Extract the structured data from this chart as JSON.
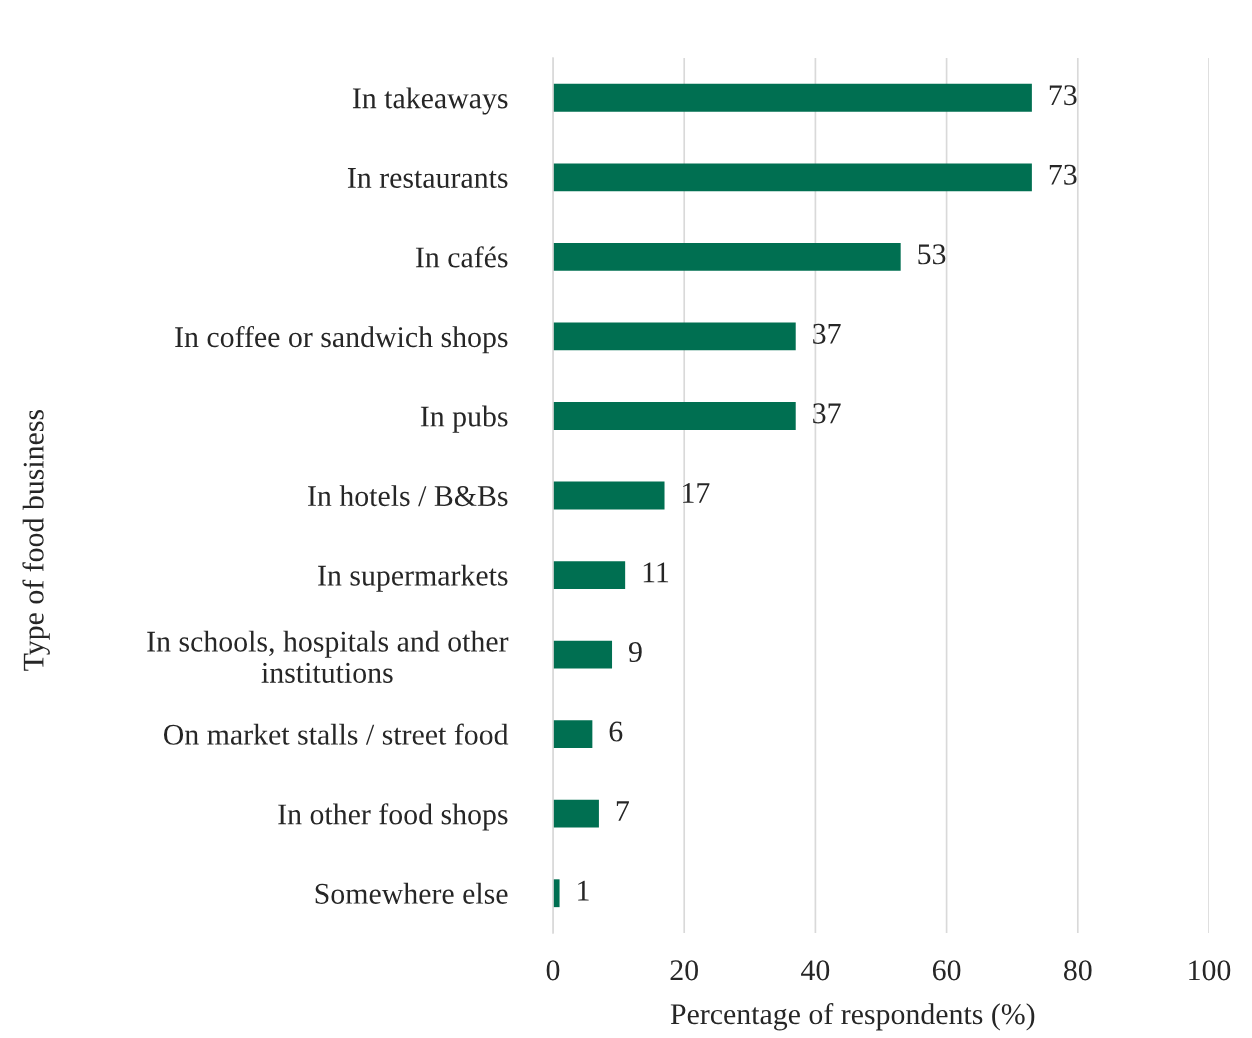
{
  "chart_data": {
    "type": "bar",
    "orientation": "horizontal",
    "xlabel": "Percentage of respondents (%)",
    "ylabel": "Type of food business",
    "categories": [
      "In takeaways",
      "In restaurants",
      "In cafés",
      "In coffee or sandwich shops",
      "In pubs",
      "In hotels / B&Bs",
      "In supermarkets",
      "In schools, hospitals and other\ninstitutions",
      "On market stalls / street food",
      "In other food shops",
      "Somewhere else"
    ],
    "values": [
      73,
      73,
      53,
      37,
      37,
      17,
      11,
      9,
      6,
      7,
      1
    ],
    "color": "#006f51",
    "xlim": [
      0,
      100
    ],
    "xticks": [
      0,
      20,
      40,
      60,
      80,
      100
    ],
    "grid": "x",
    "data_labels": true
  }
}
